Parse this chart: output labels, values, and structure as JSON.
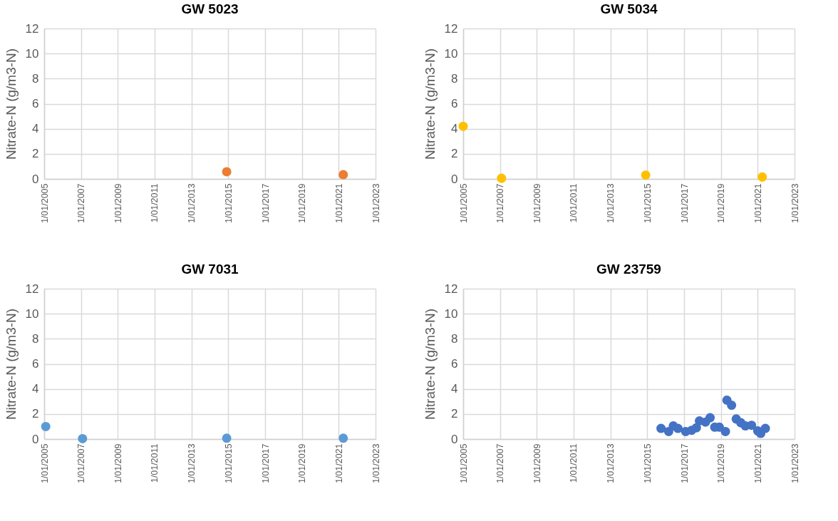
{
  "chart_data": [
    {
      "type": "scatter",
      "title": "GW 5023",
      "ylabel": "Nitrate-N (g/m3-N)",
      "marker": "circle",
      "grid": true,
      "color": "#ed7d31",
      "x": [
        "2014-12",
        "2021-04"
      ],
      "values": [
        0.57,
        0.34
      ],
      "xlim": [
        "2005-01-01",
        "2023-01-01"
      ],
      "xticks": [
        {
          "value": "2005-01-01",
          "label": "1/01/2005"
        },
        {
          "value": "2007-01-01",
          "label": "1/01/2007"
        },
        {
          "value": "2009-01-01",
          "label": "1/01/2009"
        },
        {
          "value": "2011-01-01",
          "label": "1/01/2011"
        },
        {
          "value": "2013-01-01",
          "label": "1/01/2013"
        },
        {
          "value": "2015-01-01",
          "label": "1/01/2015"
        },
        {
          "value": "2017-01-01",
          "label": "1/01/2017"
        },
        {
          "value": "2019-01-01",
          "label": "1/01/2019"
        },
        {
          "value": "2021-01-01",
          "label": "1/01/2021"
        },
        {
          "value": "2023-01-01",
          "label": "1/01/2023"
        }
      ],
      "ylim": [
        0,
        12
      ],
      "yticks": [
        0,
        2,
        4,
        6,
        8,
        10,
        12
      ]
    },
    {
      "type": "scatter",
      "title": "GW 5034",
      "ylabel": "Nitrate-N (g/m3-N)",
      "marker": "circle",
      "grid": true,
      "color": "#ffc000",
      "x": [
        "2005-01",
        "2007-02",
        "2014-12",
        "2021-04"
      ],
      "values": [
        4.2,
        0.05,
        0.3,
        0.15
      ],
      "xlim": [
        "2005-01-01",
        "2023-01-01"
      ],
      "xticks": [
        {
          "value": "2005-01-01",
          "label": "1/01/2005"
        },
        {
          "value": "2007-01-01",
          "label": "1/01/2007"
        },
        {
          "value": "2009-01-01",
          "label": "1/01/2009"
        },
        {
          "value": "2011-01-01",
          "label": "1/01/2011"
        },
        {
          "value": "2013-01-01",
          "label": "1/01/2013"
        },
        {
          "value": "2015-01-01",
          "label": "1/01/2015"
        },
        {
          "value": "2017-01-01",
          "label": "1/01/2017"
        },
        {
          "value": "2019-01-01",
          "label": "1/01/2019"
        },
        {
          "value": "2021-01-01",
          "label": "1/01/2021"
        },
        {
          "value": "2023-01-01",
          "label": "1/01/2023"
        }
      ],
      "ylim": [
        0,
        12
      ],
      "yticks": [
        0,
        2,
        4,
        6,
        8,
        10,
        12
      ]
    },
    {
      "type": "scatter",
      "title": "GW 7031",
      "ylabel": "Nitrate-N (g/m3-N)",
      "marker": "circle",
      "grid": true,
      "color": "#5b9bd5",
      "x": [
        "2005-02",
        "2007-02",
        "2014-12",
        "2021-04"
      ],
      "values": [
        1.0,
        0.03,
        0.07,
        0.07
      ],
      "xlim": [
        "2005-01-01",
        "2023-01-01"
      ],
      "xticks": [
        {
          "value": "2005-01-01",
          "label": "1/01/2005"
        },
        {
          "value": "2007-01-01",
          "label": "1/01/2007"
        },
        {
          "value": "2009-01-01",
          "label": "1/01/2009"
        },
        {
          "value": "2011-01-01",
          "label": "1/01/2011"
        },
        {
          "value": "2013-01-01",
          "label": "1/01/2013"
        },
        {
          "value": "2015-01-01",
          "label": "1/01/2015"
        },
        {
          "value": "2017-01-01",
          "label": "1/01/2017"
        },
        {
          "value": "2019-01-01",
          "label": "1/01/2019"
        },
        {
          "value": "2021-01-01",
          "label": "1/01/2021"
        },
        {
          "value": "2023-01-01",
          "label": "1/01/2023"
        }
      ],
      "ylim": [
        0,
        12
      ],
      "yticks": [
        0,
        2,
        4,
        6,
        8,
        10,
        12
      ]
    },
    {
      "type": "scatter",
      "title": "GW 23759",
      "ylabel": "Nitrate-N (g/m3-N)",
      "marker": "circle",
      "grid": true,
      "color": "#4472c4",
      "x": [
        "2015-10",
        "2016-03",
        "2016-06",
        "2016-09",
        "2017-02",
        "2017-06",
        "2017-09",
        "2017-11",
        "2018-03",
        "2018-06",
        "2018-09",
        "2018-12",
        "2019-04",
        "2019-05",
        "2019-08",
        "2019-11",
        "2020-02",
        "2020-05",
        "2020-09",
        "2021-01",
        "2021-03",
        "2021-06"
      ],
      "values": [
        0.85,
        0.6,
        1.05,
        0.85,
        0.6,
        0.7,
        0.9,
        1.45,
        1.35,
        1.7,
        0.95,
        0.95,
        0.6,
        3.1,
        2.7,
        1.6,
        1.3,
        1.05,
        1.1,
        0.65,
        0.45,
        0.85
      ],
      "xlim": [
        "2005-01-01",
        "2023-01-01"
      ],
      "xticks": [
        {
          "value": "2005-01-01",
          "label": "1/01/2005"
        },
        {
          "value": "2007-01-01",
          "label": "1/01/2007"
        },
        {
          "value": "2009-01-01",
          "label": "1/01/2009"
        },
        {
          "value": "2011-01-01",
          "label": "1/01/2011"
        },
        {
          "value": "2013-01-01",
          "label": "1/01/2013"
        },
        {
          "value": "2015-01-01",
          "label": "1/01/2015"
        },
        {
          "value": "2017-01-01",
          "label": "1/01/2017"
        },
        {
          "value": "2019-01-01",
          "label": "1/01/2019"
        },
        {
          "value": "2021-01-01",
          "label": "1/01/2021"
        },
        {
          "value": "2023-01-01",
          "label": "1/01/2023"
        }
      ],
      "ylim": [
        0,
        12
      ],
      "yticks": [
        0,
        2,
        4,
        6,
        8,
        10,
        12
      ]
    }
  ]
}
